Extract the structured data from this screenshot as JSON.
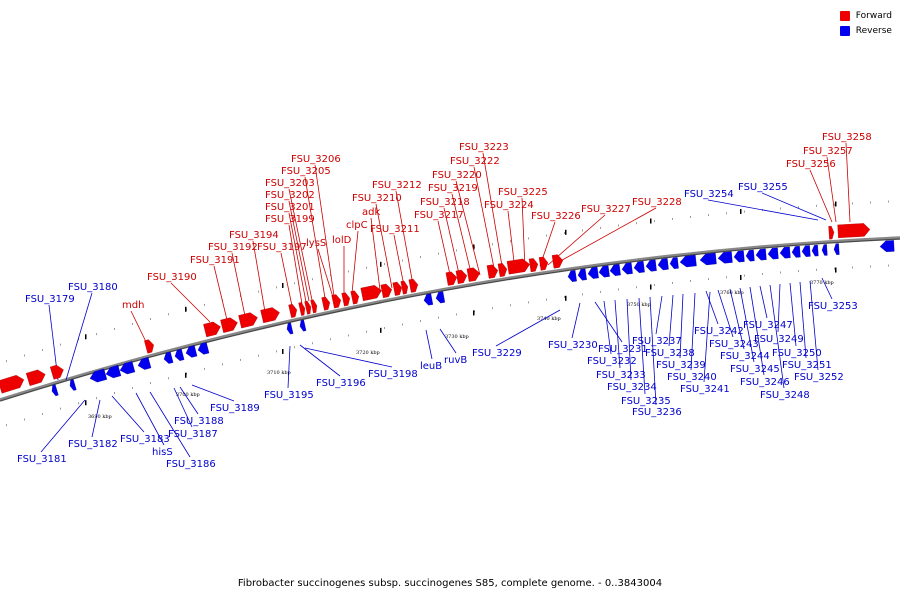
{
  "legend": {
    "forward_label": "Forward",
    "reverse_label": "Reverse",
    "forward_color": "#ee0000",
    "reverse_color": "#0000ee"
  },
  "caption": "Fibrobacter succinogenes subsp. succinogenes S85, complete genome. - 0..3843004",
  "tick_labels": [
    "3690 kbp",
    "3700 kbp",
    "3710 kbp",
    "3720 kbp",
    "3730 kbp",
    "3740 kbp",
    "3750 kbp",
    "3760 kbp",
    "3770 kbp"
  ],
  "forward_labels": [
    "mdh",
    "FSU_3190",
    "FSU_3191",
    "FSU_3192",
    "FSU_3194",
    "FSU_3197",
    "FSU_3199",
    "FSU_3201",
    "FSU_3202",
    "FSU_3203",
    "FSU_3205",
    "FSU_3206",
    "lysS",
    "lolD",
    "clpC",
    "adk",
    "FSU_3210",
    "FSU_3211",
    "FSU_3212",
    "FSU_3217",
    "FSU_3218",
    "FSU_3219",
    "FSU_3220",
    "FSU_3222",
    "FSU_3223",
    "FSU_3224",
    "FSU_3225",
    "FSU_3226",
    "FSU_3227",
    "FSU_3228",
    "FSU_3256",
    "FSU_3257",
    "FSU_3258"
  ],
  "reverse_labels": [
    "FSU_3179",
    "FSU_3180",
    "FSU_3181",
    "FSU_3182",
    "FSU_3183",
    "hisS",
    "FSU_3186",
    "FSU_3187",
    "FSU_3188",
    "FSU_3189",
    "FSU_3195",
    "FSU_3196",
    "FSU_3198",
    "leuB",
    "ruvB",
    "FSU_3229",
    "FSU_3230",
    "FSU_3231",
    "FSU_3232",
    "FSU_3233",
    "FSU_3234",
    "FSU_3235",
    "FSU_3236",
    "FSU_3237",
    "FSU_3238",
    "FSU_3239",
    "FSU_3240",
    "FSU_3241",
    "FSU_3242",
    "FSU_3243",
    "FSU_3244",
    "FSU_3245",
    "FSU_3246",
    "FSU_3247",
    "FSU_3248",
    "FSU_3249",
    "FSU_3250",
    "FSU_3251",
    "FSU_3252",
    "FSU_3253",
    "FSU_3254",
    "FSU_3255"
  ]
}
